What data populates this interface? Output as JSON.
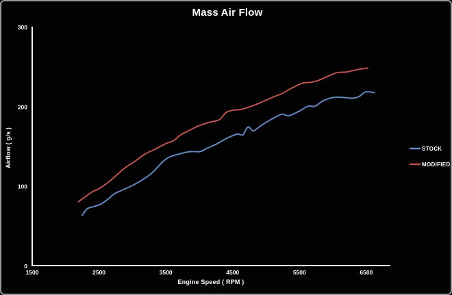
{
  "frame": {
    "background": "#020202",
    "border_color": "#9a9a9a"
  },
  "colors": {
    "axis": "#f2f2f2",
    "text": "#ffffff",
    "stock_line": "#6287C0",
    "modified_line": "#BE544E"
  },
  "chart_data": {
    "type": "line",
    "title": "Mass Air Flow",
    "xlabel": "Engine Speed ( RPM )",
    "ylabel": "Airflow ( g/s )",
    "xlim": [
      1500,
      6860
    ],
    "ylim": [
      0,
      300
    ],
    "x_ticks": [
      1500,
      2500,
      3500,
      4500,
      5500,
      6500
    ],
    "y_ticks": [
      0,
      100,
      200,
      300
    ],
    "grid": false,
    "legend_position": "right",
    "series": [
      {
        "name": "STOCK",
        "color": "#6287C0",
        "points": [
          [
            2250,
            64
          ],
          [
            2320,
            72
          ],
          [
            2420,
            75
          ],
          [
            2525,
            78
          ],
          [
            2630,
            84
          ],
          [
            2730,
            91
          ],
          [
            2830,
            95
          ],
          [
            2990,
            101
          ],
          [
            3140,
            108
          ],
          [
            3290,
            117
          ],
          [
            3450,
            131
          ],
          [
            3550,
            137
          ],
          [
            3700,
            141
          ],
          [
            3860,
            144
          ],
          [
            4010,
            144
          ],
          [
            4110,
            148
          ],
          [
            4270,
            154
          ],
          [
            4420,
            161
          ],
          [
            4570,
            166
          ],
          [
            4650,
            165
          ],
          [
            4730,
            175
          ],
          [
            4810,
            170
          ],
          [
            4930,
            177
          ],
          [
            5090,
            185
          ],
          [
            5240,
            191
          ],
          [
            5340,
            189
          ],
          [
            5500,
            195
          ],
          [
            5630,
            201
          ],
          [
            5730,
            201
          ],
          [
            5860,
            208
          ],
          [
            6010,
            212
          ],
          [
            6160,
            212
          ],
          [
            6290,
            211
          ],
          [
            6390,
            213
          ],
          [
            6490,
            219
          ],
          [
            6620,
            218
          ]
        ]
      },
      {
        "name": "MODIFIED",
        "color": "#BE544E",
        "points": [
          [
            2190,
            81
          ],
          [
            2290,
            87
          ],
          [
            2390,
            93
          ],
          [
            2490,
            97
          ],
          [
            2600,
            103
          ],
          [
            2730,
            112
          ],
          [
            2880,
            123
          ],
          [
            3040,
            132
          ],
          [
            3190,
            141
          ],
          [
            3340,
            147
          ],
          [
            3500,
            154
          ],
          [
            3620,
            158
          ],
          [
            3720,
            165
          ],
          [
            3860,
            171
          ],
          [
            4010,
            177
          ],
          [
            4160,
            181
          ],
          [
            4300,
            184
          ],
          [
            4400,
            193
          ],
          [
            4500,
            196
          ],
          [
            4630,
            197
          ],
          [
            4780,
            201
          ],
          [
            4930,
            206
          ],
          [
            5090,
            212
          ],
          [
            5240,
            217
          ],
          [
            5390,
            224
          ],
          [
            5550,
            230
          ],
          [
            5670,
            231
          ],
          [
            5770,
            233
          ],
          [
            5910,
            238
          ],
          [
            6060,
            243
          ],
          [
            6210,
            244
          ],
          [
            6370,
            247
          ],
          [
            6520,
            249
          ]
        ]
      }
    ]
  }
}
